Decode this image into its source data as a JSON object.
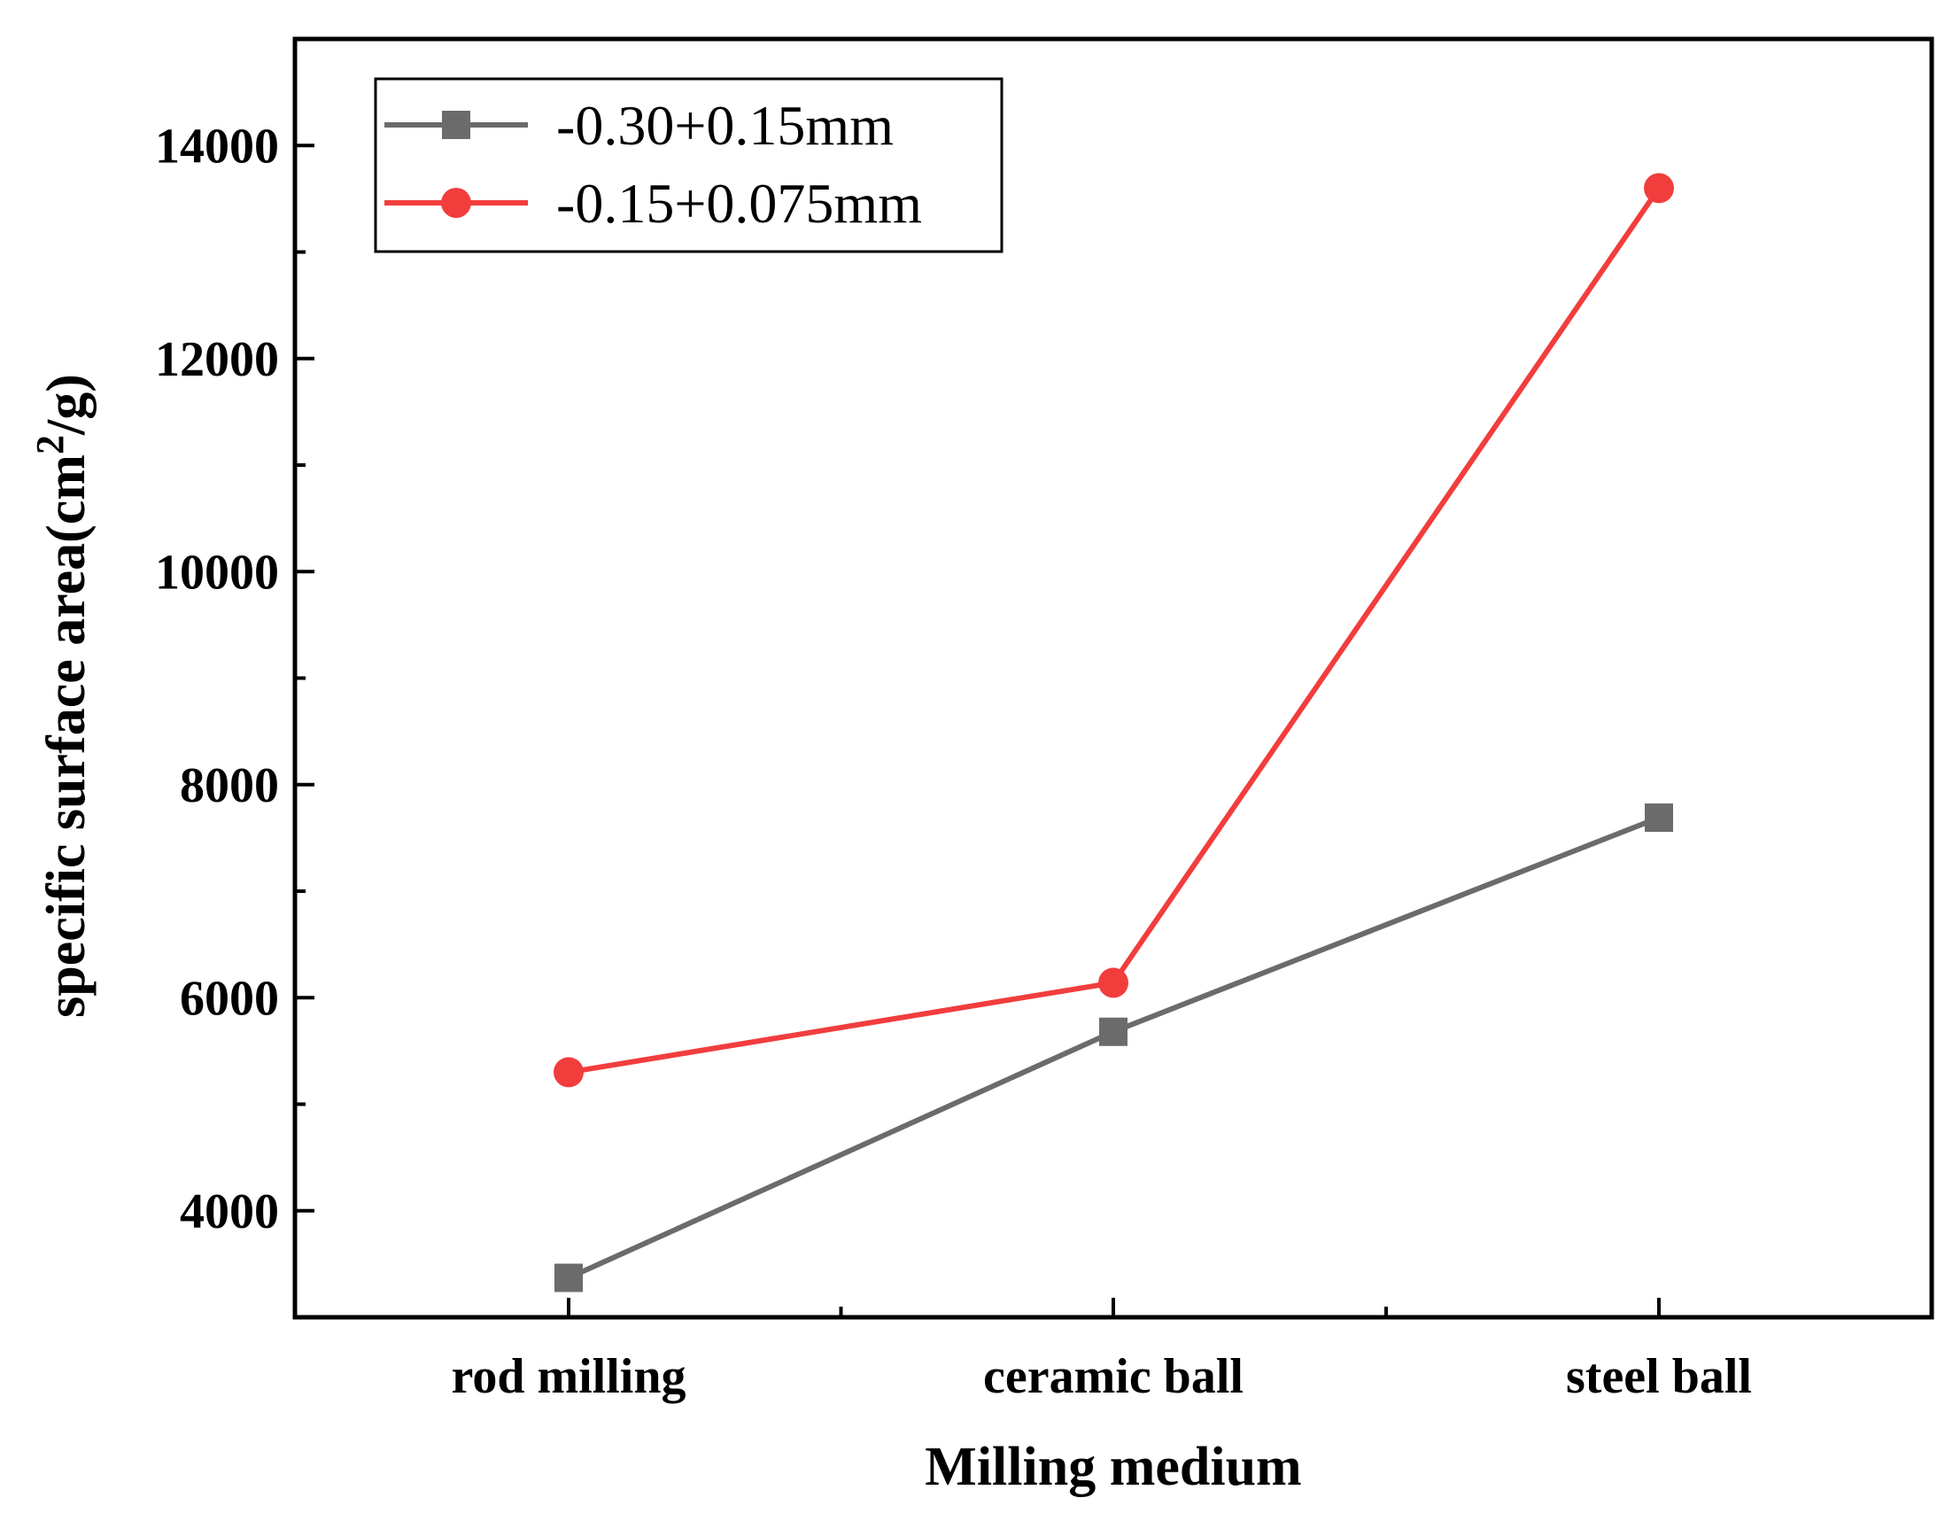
{
  "chart_data": {
    "type": "line",
    "title": "",
    "xlabel": "Milling medium",
    "ylabel_main": "specific surface area(cm",
    "ylabel_sup": "2",
    "ylabel_tail": "/g)",
    "categories": [
      "rod milling",
      "ceramic ball",
      "steel ball"
    ],
    "ylim": [
      3000,
      15000
    ],
    "yticks": [
      4000,
      6000,
      8000,
      10000,
      12000,
      14000
    ],
    "yticks_labels": [
      "4000",
      "6000",
      "8000",
      "10000",
      "12000",
      "14000"
    ],
    "ymajor_step": 2000,
    "yminor_step": 1000,
    "grid": false,
    "legend_position": "top-left",
    "series": [
      {
        "name": "-0.30+0.15mm",
        "values": [
          3370,
          5680,
          7690
        ],
        "color": "#6b6b6b",
        "marker": "square"
      },
      {
        "name": "-0.15+0.075mm",
        "values": [
          5300,
          6140,
          13600
        ],
        "color": "#f23d3d",
        "marker": "circle"
      }
    ]
  }
}
